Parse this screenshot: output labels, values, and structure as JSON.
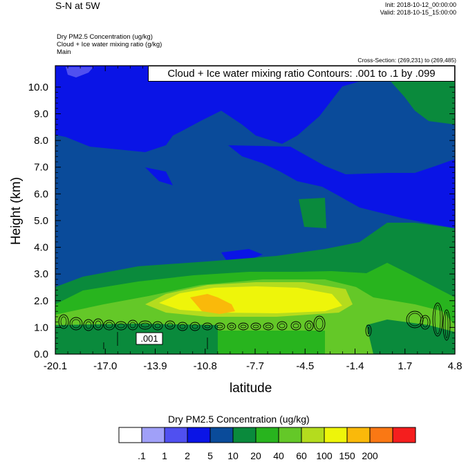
{
  "header": {
    "title": "S-N at 5W",
    "init": "Init: 2018-10-12_00:00:00",
    "valid": "Valid: 2018-10-15_15:00:00",
    "field_1": "Dry PM2.5 Concentration   (ug/kg)",
    "field_2": "Cloud + Ice water mixing ratio   (g/kg)",
    "field_3": "Main",
    "cross_section": "Cross-Section: (269,231) to (269,485)",
    "contour_label": "Cloud + Ice water mixing ratio Contours: .001 to .1 by .099"
  },
  "chart_data": {
    "type": "heatmap",
    "xlabel": "latitude",
    "ylabel": "Height (km)",
    "x_ticks": [
      "-20.1",
      "-17.0",
      "-13.9",
      "-10.8",
      "-7.7",
      "-4.5",
      "-1.4",
      "1.7",
      "4.8"
    ],
    "xlim": [
      -20.1,
      4.8
    ],
    "y_ticks": [
      "0.0",
      "1.0",
      "2.0",
      "3.0",
      "4.0",
      "5.0",
      "6.0",
      "7.0",
      "8.0",
      "9.0",
      "10.0"
    ],
    "ylim": [
      0,
      10.8
    ],
    "contour_marker_label": ".001",
    "colorbar": {
      "title": "Dry PM2.5 Concentration  (ug/kg)",
      "labels": [
        ".1",
        "1",
        "2",
        "5",
        "10",
        "20",
        "40",
        "60",
        "100",
        "150",
        "200"
      ],
      "colors": [
        "#ffffff",
        "#a0a0f8",
        "#5050f0",
        "#0a14e6",
        "#0a4b9a",
        "#0a8a3c",
        "#28b41e",
        "#64c828",
        "#b4dc1e",
        "#eef50a",
        "#fab90a",
        "#fa7814",
        "#f51e1e"
      ]
    }
  }
}
